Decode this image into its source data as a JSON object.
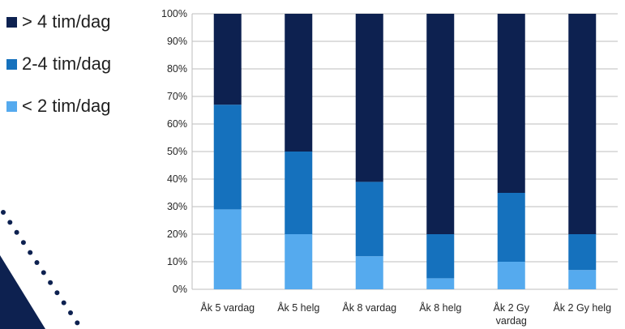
{
  "legend": {
    "items": [
      {
        "label": "> 4 tim/dag",
        "color": "#0d2150"
      },
      {
        "label": "2-4 tim/dag",
        "color": "#1571bd"
      },
      {
        "label": "< 2 tim/dag",
        "color": "#55aaee"
      }
    ]
  },
  "chart_data": {
    "type": "bar",
    "stacked": true,
    "categories": [
      [
        "Åk 5 vardag"
      ],
      [
        "Åk 5 helg"
      ],
      [
        "Åk 8 vardag"
      ],
      [
        "Åk 8 helg"
      ],
      [
        "Åk 2 Gy",
        "vardag"
      ],
      [
        "Åk 2 Gy helg"
      ]
    ],
    "series": [
      {
        "name": "< 2 tim/dag",
        "color": "#55aaee",
        "values": [
          29,
          20,
          12,
          4,
          10,
          7
        ]
      },
      {
        "name": "2-4 tim/dag",
        "color": "#1571bd",
        "values": [
          38,
          30,
          27,
          16,
          25,
          13
        ]
      },
      {
        "name": "> 4 tim/dag",
        "color": "#0d2150",
        "values": [
          33,
          50,
          61,
          80,
          65,
          80
        ]
      }
    ],
    "ylim": [
      0,
      100
    ],
    "yticks": [
      "0%",
      "10%",
      "20%",
      "30%",
      "40%",
      "50%",
      "60%",
      "70%",
      "80%",
      "90%",
      "100%"
    ],
    "grid": true,
    "legend_position": "left"
  }
}
